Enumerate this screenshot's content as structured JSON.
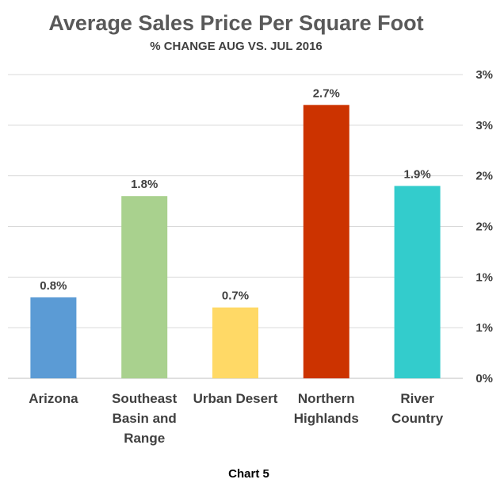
{
  "chart_data": {
    "type": "bar",
    "title": "Average Sales Price Per Square Foot",
    "subtitle": "% CHANGE AUG VS. JUL 2016",
    "categories": [
      [
        "Arizona"
      ],
      [
        "Southeast",
        "Basin and",
        "Range"
      ],
      [
        "Urban Desert"
      ],
      [
        "Northern",
        "Highlands"
      ],
      [
        "River",
        "Country"
      ]
    ],
    "values": [
      0.8,
      1.8,
      0.7,
      2.7,
      1.9
    ],
    "value_labels": [
      "0.8%",
      "1.8%",
      "0.7%",
      "2.7%",
      "1.9%"
    ],
    "bar_colors": [
      "#5b9bd5",
      "#a9d18e",
      "#ffd966",
      "#cc3300",
      "#33cccc"
    ],
    "ylim": [
      0,
      3
    ],
    "y_ticks": [
      {
        "value": 0,
        "label": "0%"
      },
      {
        "value": 0.5,
        "label": "1%"
      },
      {
        "value": 1,
        "label": "1%"
      },
      {
        "value": 1.5,
        "label": "2%"
      },
      {
        "value": 2,
        "label": "2%"
      },
      {
        "value": 2.5,
        "label": "3%"
      },
      {
        "value": 3,
        "label": "3%"
      }
    ],
    "y_axis_side": "right",
    "grid": true,
    "legend": "none",
    "caption": "Chart 5"
  }
}
